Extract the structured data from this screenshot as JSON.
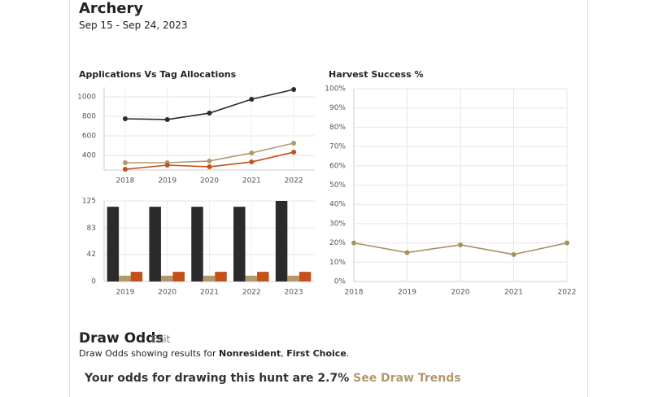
{
  "header": {
    "title": "Archery",
    "dates": "Sep 15 - Sep 24, 2023"
  },
  "chart_data": [
    {
      "type": "line",
      "title": "Applications Vs Tag Allocations",
      "categories": [
        "2018",
        "2019",
        "2020",
        "2021",
        "2022"
      ],
      "series": [
        {
          "color": "#2b2b2b",
          "values": [
            775,
            767,
            833,
            975,
            1075
          ]
        },
        {
          "color": "#b09a6c",
          "values": [
            325,
            325,
            342,
            425,
            525
          ]
        },
        {
          "color": "#c4501a",
          "values": [
            258,
            300,
            283,
            333,
            433
          ]
        }
      ],
      "ylim": [
        250,
        1100
      ],
      "yticks": [
        400,
        600,
        800,
        1000
      ],
      "grid": true
    },
    {
      "type": "bar",
      "categories": [
        "2019",
        "2020",
        "2021",
        "2022",
        "2023"
      ],
      "series": [
        {
          "color": "#2b2b2b",
          "values": [
            116,
            116,
            116,
            116,
            125
          ]
        },
        {
          "color": "#b09a6c",
          "values": [
            9,
            9,
            9,
            9,
            9
          ]
        },
        {
          "color": "#c4501a",
          "values": [
            15,
            15,
            15,
            15,
            15
          ]
        }
      ],
      "ylim": [
        0,
        125
      ],
      "yticks": [
        0,
        42,
        83,
        125
      ],
      "grid": true
    },
    {
      "type": "line",
      "title": "Harvest Success %",
      "x": [
        2018,
        2019,
        2020,
        2021,
        2022
      ],
      "series": [
        {
          "color": "#a89060",
          "values": [
            20,
            15,
            19,
            14,
            20
          ]
        }
      ],
      "xlim": [
        2018,
        2022
      ],
      "xticks": [
        2018,
        2019,
        2020,
        2021,
        2022
      ],
      "ylim": [
        0,
        100
      ],
      "yticks": [
        {
          "value": 0,
          "label": "0%"
        },
        {
          "value": 10,
          "label": "10%"
        },
        {
          "value": 20,
          "label": "20%"
        },
        {
          "value": 30,
          "label": "30%"
        },
        {
          "value": 40,
          "label": "40%"
        },
        {
          "value": 50,
          "label": "50%"
        },
        {
          "value": 60,
          "label": "60%"
        },
        {
          "value": 70,
          "label": "70%"
        },
        {
          "value": 80,
          "label": "80%"
        },
        {
          "value": 90,
          "label": "90%"
        },
        {
          "value": 100,
          "label": "100%"
        }
      ],
      "grid": true
    }
  ],
  "draw_odds": {
    "title": "Draw Odds",
    "edit": "Edit",
    "results_prefix": "Draw Odds showing results for ",
    "residency": "Nonresident",
    "separator": ", ",
    "choice": "First Choice",
    "suffix": ".",
    "odds_text": "Your odds for drawing this hunt are ",
    "odds_value": "2.7%",
    "trends_link": "See Draw Trends"
  }
}
